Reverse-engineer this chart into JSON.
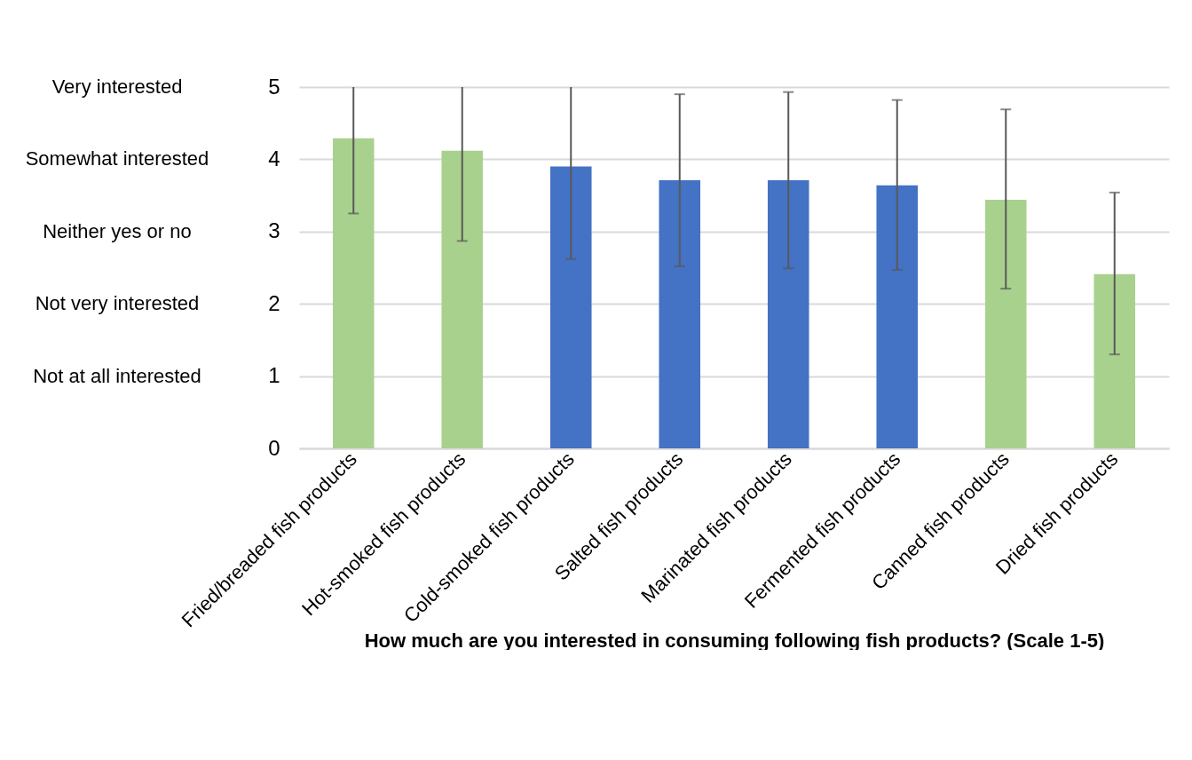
{
  "chart_data": {
    "type": "bar",
    "xlabel": "How much are you interested in consuming following fish products? (Scale 1-5)",
    "categories": [
      "Fried/breaded fish products",
      "Hot-smoked fish products",
      "Cold-smoked fish products",
      "Salted fish products",
      "Marinated fish products",
      "Fermented fish products",
      "Canned fish products",
      "Dried fish products"
    ],
    "values": [
      4.29,
      4.12,
      3.9,
      3.71,
      3.71,
      3.64,
      3.44,
      2.41
    ],
    "colors": [
      "#a9d18e",
      "#a9d18e",
      "#4472c4",
      "#4472c4",
      "#4472c4",
      "#4472c4",
      "#a9d18e",
      "#a9d18e"
    ],
    "errors": [
      [
        3.25,
        5
      ],
      [
        2.87,
        5
      ],
      [
        2.62,
        5
      ],
      [
        2.52,
        4.9
      ],
      [
        2.49,
        4.93
      ],
      [
        2.47,
        4.82
      ],
      [
        2.21,
        4.69
      ],
      [
        1.3,
        3.54
      ]
    ],
    "ylim": [
      0,
      5
    ],
    "yticks": [
      0,
      1,
      2,
      3,
      4,
      5
    ],
    "grid": "y",
    "annotations": [
      "Very interested",
      "Somewhat interested",
      "Neither yes or no",
      "Not very interested",
      "Not at all interested"
    ]
  }
}
